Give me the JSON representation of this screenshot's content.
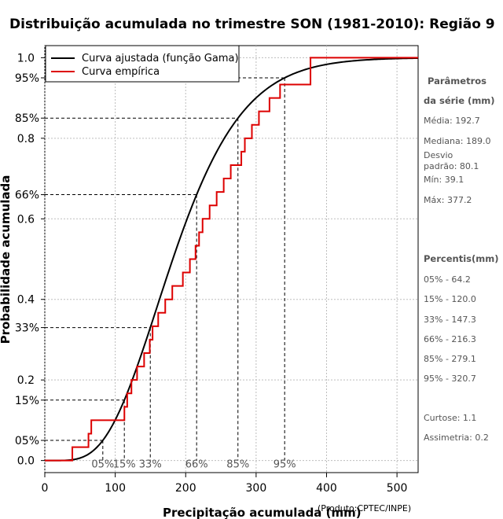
{
  "chart_data": {
    "type": "line",
    "title": "Distribuição acumulada no trimestre SON (1981-2010): Região 9",
    "xlabel": "Precipitação acumulada (mm)",
    "ylabel": "Probabilidade acumulada",
    "credit": "(Produto:CPTEC/INPE)",
    "xlim": [
      0,
      530
    ],
    "ylim": [
      -0.03,
      1.03
    ],
    "x_ticks": [
      0,
      100,
      200,
      300,
      400,
      500
    ],
    "y_ticks": [
      0.0,
      0.2,
      0.4,
      0.6,
      0.8,
      1.0
    ],
    "y_tick_labels": [
      "0.0",
      "0.2",
      "0.4",
      "0.6",
      "0.8",
      "1.0"
    ],
    "gamma": {
      "mean": 192.7,
      "sd": 80.1
    },
    "empirical": {
      "name": "Curva empírica",
      "x": [
        39.1,
        62,
        66,
        113,
        117,
        123,
        131,
        141,
        149,
        153,
        161,
        171,
        181,
        196,
        206,
        214,
        219,
        224,
        234,
        244,
        254,
        264,
        279,
        284,
        294,
        304,
        319,
        334,
        377.2
      ],
      "y": [
        0.0333,
        0.0667,
        0.1,
        0.1333,
        0.1667,
        0.2,
        0.2333,
        0.2667,
        0.3,
        0.3333,
        0.3667,
        0.4,
        0.4333,
        0.4667,
        0.5,
        0.5333,
        0.5667,
        0.6,
        0.6333,
        0.6667,
        0.7,
        0.7333,
        0.7667,
        0.8,
        0.8333,
        0.8667,
        0.9,
        0.9333,
        1.0
      ]
    },
    "percentile_guides": [
      {
        "label": "05%",
        "p": 0.05,
        "x": 64.2
      },
      {
        "label": "15%",
        "p": 0.15,
        "x": 120.0
      },
      {
        "label": "33%",
        "p": 0.33,
        "x": 147.3
      },
      {
        "label": "66%",
        "p": 0.66,
        "x": 216.3
      },
      {
        "label": "85%",
        "p": 0.85,
        "x": 279.1
      },
      {
        "label": "95%",
        "p": 0.95,
        "x": 320.7
      }
    ],
    "legend": [
      {
        "label": "Curva ajustada (função Gama)",
        "color": "#000000"
      },
      {
        "label": "Curva empírica",
        "color": "#dd0000"
      }
    ],
    "legend_position": "top-left",
    "grid": true
  },
  "sidebar": {
    "params_title_1": "Parâmetros",
    "params_title_2": "da série (mm)",
    "media": "Média: 192.7",
    "mediana": "Mediana: 189.0",
    "desvio_1": "Desvio",
    "desvio_2": "padrão: 80.1",
    "min": "Mín: 39.1",
    "max": "Máx: 377.2",
    "percentis_title": "Percentis(mm)",
    "percentis": [
      "05% - 64.2",
      "15% - 120.0",
      "33% - 147.3",
      "66% - 216.3",
      "85% - 279.1",
      "95% - 320.7"
    ],
    "curtose": "Curtose: 1.1",
    "assimetria": "Assimetria: 0.2"
  }
}
